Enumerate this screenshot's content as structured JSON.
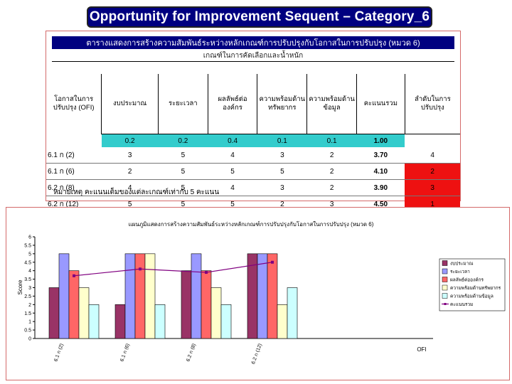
{
  "slide_title": "Opportunity  for Improvement Sequent – Category_6",
  "table": {
    "title": "ตารางแสดงการสร้างความสัมพันธ์ระหว่างหลักเกณฑ์การปรับปรุงกับโอกาสในการปรับปรุง (หมวด 6)",
    "criteria_header": "เกณฑ์ในการคัดเลือกและน้ำหนัก",
    "col_opportunity": "โอกาสในการปรับปรุง (OFI)",
    "columns": [
      "งบประมาณ",
      "ระยะเวลา",
      "ผลลัพธ์ต่อองค์กร",
      "ความพร้อมด้านทรัพยากร",
      "ความพร้อมด้านข้อมูล",
      "คะแนนรวม"
    ],
    "col_rank": "ลำดับในการปรับปรุง",
    "weights": [
      "0.2",
      "0.2",
      "0.4",
      "0.1",
      "0.1",
      "1.00"
    ],
    "rows": [
      {
        "ofi": "6.1 ก (2)",
        "values": [
          "3",
          "5",
          "4",
          "3",
          "2"
        ],
        "total": "3.70",
        "rank": "4"
      },
      {
        "ofi": "6.1 ก (6)",
        "values": [
          "2",
          "5",
          "5",
          "5",
          "2"
        ],
        "total": "4.10",
        "rank": "2"
      },
      {
        "ofi": "6.2 ก (8)",
        "values": [
          "4",
          "5",
          "4",
          "3",
          "2"
        ],
        "total": "3.90",
        "rank": "3"
      },
      {
        "ofi": "6.2 ก (12)",
        "values": [
          "5",
          "5",
          "5",
          "2",
          "3"
        ],
        "total": "4.50",
        "rank": "1"
      }
    ],
    "note": "หมายเหตุ  คะแนนเต็มของแต่ละเกณฑ์เท่ากับ 5 คะแนน",
    "colors": {
      "header_bg": "#000080",
      "weight_bg": "#33cccc",
      "rank_highlight": "#ee1111"
    }
  },
  "chart_data": {
    "type": "bar",
    "title": "แผนภูมิแสดงการสร้างความสัมพันธ์ระหว่างหลักเกณฑ์การปรับปรุงกับโอกาสในการปรับปรุง (หมวด 6)",
    "ylabel": "Score",
    "xlabel": "OFI",
    "ylim": [
      0,
      6
    ],
    "yticks": [
      "0",
      "0.5",
      "1",
      "1.5",
      "2",
      "2.5",
      "3",
      "3.5",
      "4",
      "4.5",
      "5",
      "5.5",
      "6"
    ],
    "categories": [
      "6.1 ก (2)",
      "6.1 ก (6)",
      "6.2 ก (8)",
      "6.2 ก (12)"
    ],
    "series": [
      {
        "name": "งบประมาณ",
        "values": [
          3,
          2,
          4,
          5
        ],
        "color": "#993366"
      },
      {
        "name": "ระยะเวลา",
        "values": [
          5,
          5,
          5,
          5
        ],
        "color": "#9999ff"
      },
      {
        "name": "ผลลัพธ์ต่อองค์กร",
        "values": [
          4,
          5,
          4,
          5
        ],
        "color": "#ff6666"
      },
      {
        "name": "ความพร้อมด้านทรัพยากร",
        "values": [
          3,
          5,
          3,
          2
        ],
        "color": "#ffffcc"
      },
      {
        "name": "ความพร้อมด้านข้อมูล",
        "values": [
          2,
          2,
          2,
          3
        ],
        "color": "#ccffff"
      }
    ],
    "line_series": {
      "name": "คะแนนรวม",
      "values": [
        3.7,
        4.1,
        3.9,
        4.5
      ],
      "color": "#800080"
    },
    "legend_position": "right",
    "grid": false
  }
}
